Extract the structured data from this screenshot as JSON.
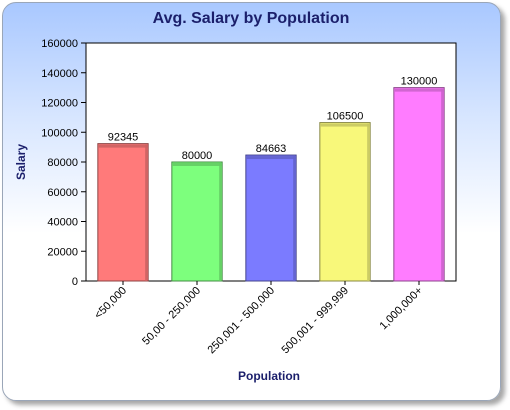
{
  "chart_data": {
    "type": "bar",
    "title": "Avg. Salary by Population",
    "xlabel": "Population",
    "ylabel": "Salary",
    "categories": [
      "<50,000",
      "50,00 - 250,000",
      "250,001 - 500,000",
      "500,001 - 999,999",
      "1,000,000+"
    ],
    "values": [
      92345,
      80000,
      84663,
      106500,
      130000
    ],
    "data_labels": [
      "92345",
      "80000",
      "84663",
      "106500",
      "130000"
    ],
    "bar_colors": [
      "#ff7a7a",
      "#7dff7d",
      "#7b7bff",
      "#f8f87a",
      "#ff7cff"
    ],
    "ylim": [
      0,
      160000
    ],
    "yticks": [
      0,
      20000,
      40000,
      60000,
      80000,
      100000,
      120000,
      140000,
      160000
    ],
    "ytick_labels": [
      "0",
      "20000",
      "40000",
      "60000",
      "80000",
      "100000",
      "120000",
      "140000",
      "160000"
    ],
    "grid": false,
    "legend": "none"
  }
}
